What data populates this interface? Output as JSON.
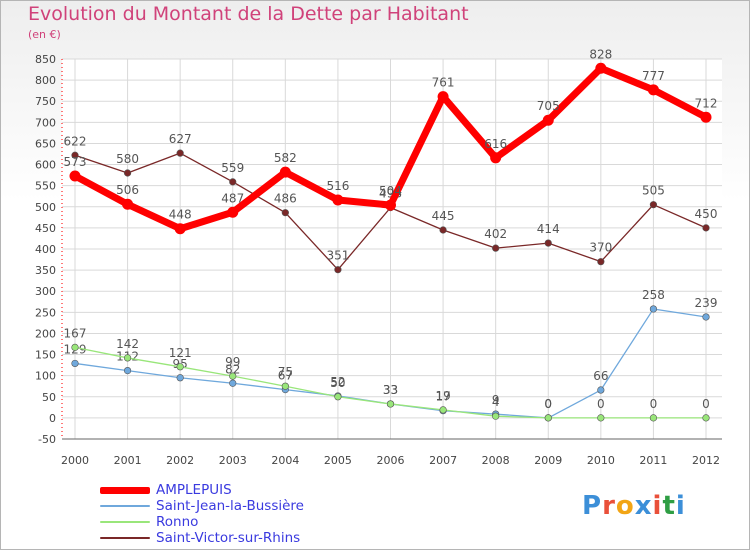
{
  "header": {
    "title": "Evolution du Montant de la Dette par Habitant",
    "unit": "(en €)"
  },
  "chart_data": {
    "type": "line",
    "title": "Evolution du Montant de la Dette par Habitant",
    "ylabel": "(en €)",
    "x": [
      "2000",
      "2001",
      "2002",
      "2003",
      "2004",
      "2005",
      "2006",
      "2007",
      "2008",
      "2009",
      "2010",
      "2011",
      "2012"
    ],
    "ylim": [
      -50,
      850
    ],
    "yticks": [
      -50,
      0,
      50,
      100,
      150,
      200,
      250,
      300,
      350,
      400,
      450,
      500,
      550,
      600,
      650,
      700,
      750,
      800,
      850
    ],
    "grid": true,
    "series": [
      {
        "name": "AMPLEPUIS",
        "color": "#ff0000",
        "values": [
          573,
          506,
          448,
          487,
          582,
          516,
          504,
          761,
          616,
          705,
          828,
          777,
          712
        ],
        "labels": [
          "573",
          "506",
          "448",
          "487",
          "582",
          "516",
          "504",
          "761",
          "616",
          "705",
          "828",
          "777",
          "712"
        ]
      },
      {
        "name": "Saint-Jean-la-Bussière",
        "color": "#6fa8dc",
        "values": [
          129,
          112,
          95,
          82,
          67,
          52,
          33,
          17,
          9,
          0,
          66,
          258,
          239
        ],
        "labels": [
          "129",
          "112",
          "95",
          "82",
          "67",
          "52",
          "33",
          "17",
          "9",
          "0",
          "66",
          "258",
          "239"
        ]
      },
      {
        "name": "Ronno",
        "color": "#99e67a",
        "values": [
          167,
          142,
          121,
          99,
          75,
          50,
          33,
          19,
          4,
          0,
          0,
          0,
          0
        ],
        "labels": [
          "167",
          "142",
          "121",
          "99",
          "75",
          "50",
          "33",
          "19",
          "4",
          "0",
          "0",
          "0",
          "0"
        ]
      },
      {
        "name": "Saint-Victor-sur-Rhins",
        "color": "#7a2828",
        "values": [
          622,
          580,
          627,
          559,
          486,
          351,
          498,
          445,
          402,
          414,
          370,
          505,
          450
        ],
        "labels": [
          "622",
          "580",
          "627",
          "559",
          "486",
          "351",
          "498",
          "445",
          "402",
          "414",
          "370",
          "505",
          "450"
        ]
      }
    ],
    "legend_position": "bottom-left"
  },
  "legend": {
    "items": [
      {
        "label": "AMPLEPUIS",
        "color": "#ff0000"
      },
      {
        "label": "Saint-Jean-la-Bussière",
        "color": "#6fa8dc"
      },
      {
        "label": "Ronno",
        "color": "#99e67a"
      },
      {
        "label": "Saint-Victor-sur-Rhins",
        "color": "#7a2828"
      }
    ]
  },
  "brand": {
    "letters": [
      "P",
      "r",
      "o",
      "x",
      "i",
      "t",
      "i"
    ],
    "colors": [
      "#3c8fd8",
      "#e9503a",
      "#f2a515",
      "#3c8fd8",
      "#e9503a",
      "#2f9e44",
      "#3c8fd8"
    ]
  }
}
